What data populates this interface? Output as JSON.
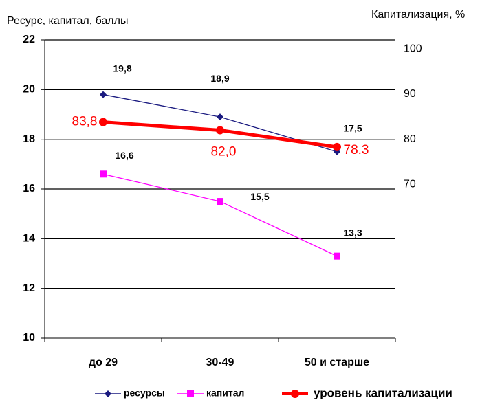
{
  "chart_data": {
    "type": "line",
    "y_axis_label": "Ресурс, капитал, баллы",
    "y2_axis_label": "Капитализация, %",
    "categories": [
      "до 29",
      "30-49",
      "50 и старше"
    ],
    "ylim": [
      10,
      22
    ],
    "yticks": [
      10,
      12,
      14,
      16,
      18,
      20,
      22
    ],
    "y2lim": [
      36,
      102
    ],
    "y2ticks": [
      70,
      80,
      90,
      100
    ],
    "grid": true,
    "legend": "bottom",
    "series": [
      {
        "name": "ресурсы",
        "color": "#1a1a80",
        "marker": "diamond",
        "values": [
          19.8,
          18.9,
          17.5
        ],
        "value_labels": [
          "19,8",
          "18,9",
          "17,5"
        ]
      },
      {
        "name": "капитал",
        "color": "#ff00ff",
        "marker": "square",
        "values": [
          16.6,
          15.5,
          13.3
        ],
        "value_labels": [
          "16,6",
          "15,5",
          "13,3"
        ]
      },
      {
        "name": "уровень капитализации",
        "color": "#ff0000",
        "marker": "circle",
        "axis": "y2",
        "values": [
          83.8,
          82.0,
          78.3
        ],
        "value_labels": [
          "83,8",
          "82,0",
          "78.3"
        ]
      }
    ]
  }
}
